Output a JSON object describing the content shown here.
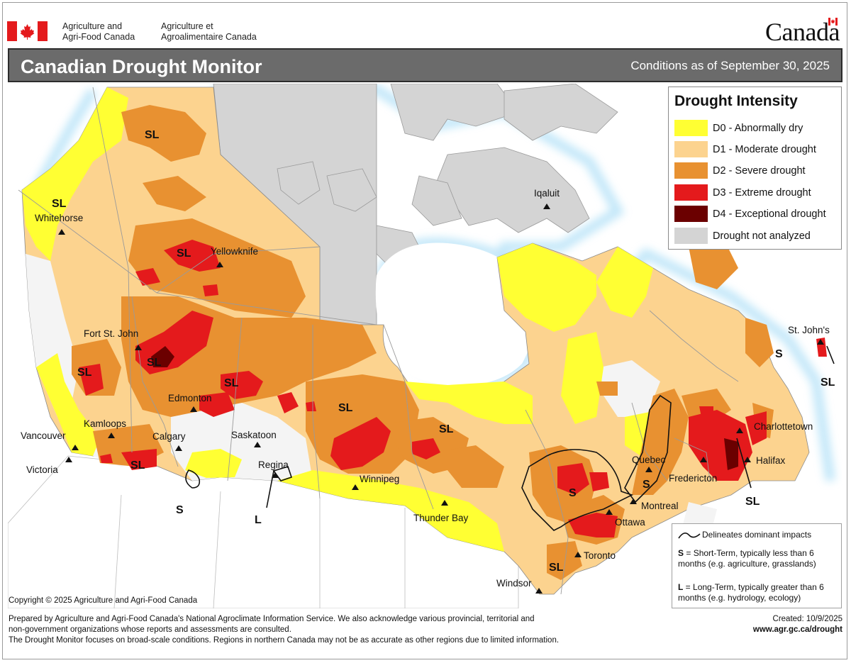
{
  "header": {
    "department_en_1": "Agriculture and",
    "department_en_2": "Agri-Food Canada",
    "department_fr_1": "Agriculture et",
    "department_fr_2": "Agroalimentaire Canada",
    "wordmark": "Canada"
  },
  "title": "Canadian Drought Monitor",
  "conditions_date": "Conditions as of September 30, 2025",
  "legend": {
    "title": "Drought Intensity",
    "items": [
      {
        "label": "D0 - Abnormally dry",
        "color": "#ffff33"
      },
      {
        "label": "D1 - Moderate drought",
        "color": "#fcd38f"
      },
      {
        "label": "D2 - Severe drought",
        "color": "#e89131"
      },
      {
        "label": "D3 - Extreme drought",
        "color": "#e41a1c"
      },
      {
        "label": "D4 - Exceptional drought",
        "color": "#6b0000"
      },
      {
        "label": "Drought not analyzed",
        "color": "#d4d4d4"
      }
    ]
  },
  "impacts": {
    "line_label": "Delineates dominant impacts",
    "s_key": "S",
    "s_text": " = Short-Term, typically less than 6 months (e.g. agriculture, grasslands)",
    "l_key": "L",
    "l_text": " = Long-Term, typically greater  than 6 months (e.g. hydrology, ecology)"
  },
  "cities": {
    "whitehorse": "Whitehorse",
    "yellowknife": "Yellowknife",
    "iqaluit": "Iqaluit",
    "fort_st_john": "Fort St. John",
    "edmonton": "Edmonton",
    "kamloops": "Kamloops",
    "vancouver": "Vancouver",
    "victoria": "Victoria",
    "calgary": "Calgary",
    "saskatoon": "Saskatoon",
    "regina": "Regina",
    "winnipeg": "Winnipeg",
    "thunder_bay": "Thunder Bay",
    "windsor": "Windsor",
    "toronto": "Toronto",
    "ottawa": "Ottawa",
    "montreal": "Montreal",
    "quebec": "Quebec",
    "fredericton": "Fredericton",
    "charlottetown": "Charlottetown",
    "halifax": "Halifax",
    "st_johns": "St. John's"
  },
  "impact_labels": {
    "sl": "SL",
    "s": "S",
    "l": "L"
  },
  "copyright": "Copyright © 2025 Agriculture and Agri-Food Canada",
  "footer": {
    "line1": "Prepared by Agriculture and Agri-Food Canada's National Agroclimate Information Service.  We also acknowledge various provincial, territorial and",
    "line2": "non-government organizations whose reports and assessments are consulted.",
    "line3": "The Drought Monitor focuses on broad-scale conditions.  Regions in northern Canada may not be as accurate as other regions due to limited information.",
    "created": "Created: 10/9/2025",
    "url": "www.agr.gc.ca/drought"
  }
}
